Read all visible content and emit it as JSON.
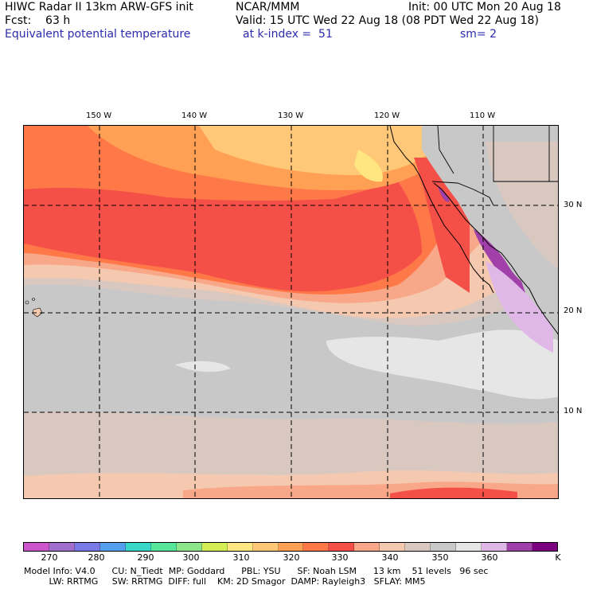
{
  "header": {
    "line1_left": "HIWC Radar II 13km ARW-GFS init",
    "line1_mid": "NCAR/MMM",
    "line1_right": "Init: 00 UTC Mon 20 Aug 18",
    "line2_left": "Fcst:    63 h",
    "line2_mid": "Valid: 15 UTC Wed 22 Aug 18 (08 PDT Wed 22 Aug 18)",
    "line3_left": "Equivalent potential temperature",
    "line3_mid": "at k-index =  51",
    "line3_right": "sm= 2"
  },
  "map": {
    "lon_labels": [
      "150 W",
      "140 W",
      "130 W",
      "120 W",
      "110 W"
    ],
    "lat_labels": [
      "30 N",
      "20 N",
      "10 N"
    ],
    "field": "Equivalent potential temperature",
    "region": "Eastern North Pacific"
  },
  "colorbar": {
    "unit": "K",
    "tick_labels": [
      "270",
      "280",
      "290",
      "300",
      "310",
      "320",
      "330",
      "340",
      "350",
      "360"
    ],
    "colors": [
      "#cc55cc",
      "#a070cc",
      "#7a7ae6",
      "#55a0ee",
      "#3ad8c8",
      "#55e69a",
      "#8ee68a",
      "#d4ee55",
      "#ffe680",
      "#ffc878",
      "#ffa055",
      "#ff7848",
      "#f55048",
      "#f8a888",
      "#f5c8b0",
      "#d8c8c0",
      "#c8c8c8",
      "#e6e6e6",
      "#e0b8e8",
      "#a040a8",
      "#7a0080"
    ]
  },
  "footer": {
    "line1": "Model Info: V4.0      CU: N_Tiedt  MP: Goddard      PBL: YSU      SF: Noah LSM      13 km    51 levels   96 sec",
    "line2": "         LW: RRTMG     SW: RRTMG  DIFF: full    KM: 2D Smagor  DAMP: Rayleigh3   SFLAY: MM5"
  }
}
